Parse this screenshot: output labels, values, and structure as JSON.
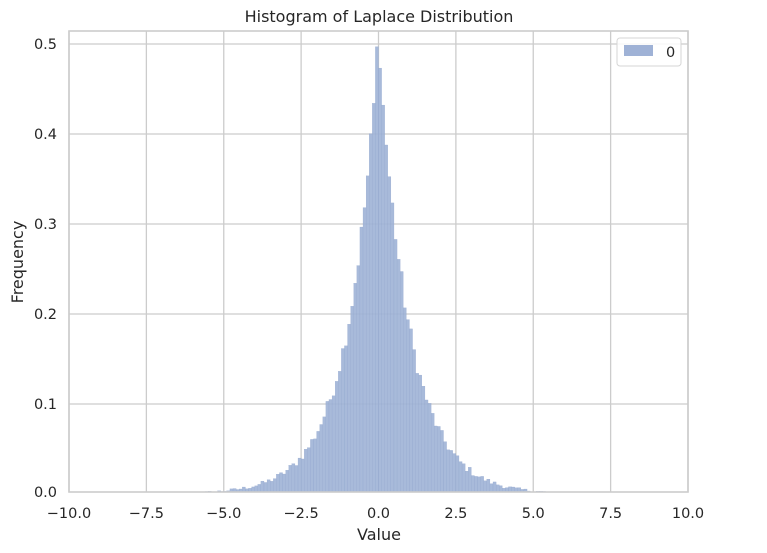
{
  "chart_data": {
    "type": "bar",
    "subtype": "histogram",
    "title": "Histogram of Laplace Distribution",
    "xlabel": "Value",
    "ylabel": "Frequency",
    "xlim": [
      -10.0,
      10.0
    ],
    "ylim": [
      0.0,
      0.5
    ],
    "x_ticks": [
      "−10.0",
      "−7.5",
      "−5.0",
      "−2.5",
      "0.0",
      "2.5",
      "5.0",
      "7.5",
      "10.0"
    ],
    "x_tick_values": [
      -10,
      -7.5,
      -5,
      -2.5,
      0,
      2.5,
      5,
      7.5,
      10
    ],
    "y_ticks": [
      "0.0",
      "0.1",
      "0.2",
      "0.3",
      "0.4",
      "0.5"
    ],
    "y_tick_values": [
      0,
      0.1,
      0.2,
      0.3,
      0.4,
      0.5
    ],
    "grid": true,
    "legend": {
      "position": "upper right",
      "entries": [
        "0"
      ]
    },
    "series": [
      {
        "name": "0",
        "color": "#9fb2d6",
        "distribution": "Laplace(loc=0, scale=1)",
        "bin_width": 0.1,
        "peak_value": 0.49,
        "peak_x": 0.0,
        "sample_points": [
          {
            "x": -6.0,
            "y": 0.002
          },
          {
            "x": -5.0,
            "y": 0.005
          },
          {
            "x": -4.0,
            "y": 0.012
          },
          {
            "x": -3.0,
            "y": 0.028
          },
          {
            "x": -2.5,
            "y": 0.042
          },
          {
            "x": -2.0,
            "y": 0.068
          },
          {
            "x": -1.5,
            "y": 0.11
          },
          {
            "x": -1.0,
            "y": 0.18
          },
          {
            "x": -0.5,
            "y": 0.3
          },
          {
            "x": -0.2,
            "y": 0.41
          },
          {
            "x": 0.0,
            "y": 0.49
          },
          {
            "x": 0.2,
            "y": 0.41
          },
          {
            "x": 0.5,
            "y": 0.3
          },
          {
            "x": 1.0,
            "y": 0.18
          },
          {
            "x": 1.5,
            "y": 0.11
          },
          {
            "x": 2.0,
            "y": 0.068
          },
          {
            "x": 2.5,
            "y": 0.042
          },
          {
            "x": 3.0,
            "y": 0.028
          },
          {
            "x": 4.0,
            "y": 0.012
          },
          {
            "x": 5.0,
            "y": 0.005
          },
          {
            "x": 6.0,
            "y": 0.002
          }
        ]
      }
    ]
  },
  "colors": {
    "bar_fill": "#9fb2d6",
    "bar_edge": "#8fa4cc",
    "grid": "#cccccc",
    "axis_frame": "#cccccc",
    "text": "#262626",
    "background": "#ffffff"
  }
}
